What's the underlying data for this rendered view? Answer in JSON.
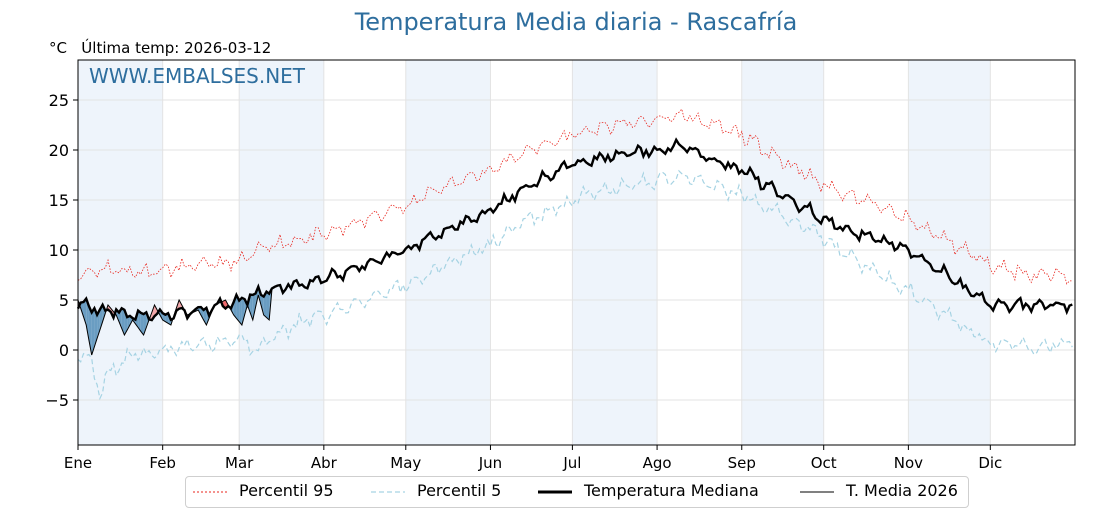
{
  "chart_data": {
    "type": "line",
    "title": "Temperatura Media diaria - Rascafría",
    "unit_label": "°C",
    "last_temp_label": "Última temp: 2026-03-12",
    "watermark": "WWW.EMBALSES.NET",
    "ylim": [
      -9.5,
      29
    ],
    "yticks": [
      -5,
      0,
      5,
      10,
      15,
      20,
      25
    ],
    "ytick_labels": [
      "−5",
      "0",
      "5",
      "10",
      "15",
      "20",
      "25"
    ],
    "months": [
      "Ene",
      "Feb",
      "Mar",
      "Abr",
      "May",
      "Jun",
      "Jul",
      "Ago",
      "Sep",
      "Oct",
      "Nov",
      "Dic"
    ],
    "month_start_days": [
      0,
      31,
      59,
      90,
      120,
      151,
      181,
      212,
      243,
      273,
      304,
      334
    ],
    "days_in_year": 365,
    "legend": [
      "Percentil 95",
      "Percentil 5",
      "Temperatura Mediana",
      "T. Media 2026"
    ],
    "colors": {
      "title": "#2e6e9e",
      "p95": "#e8241c",
      "p5": "#a6d3e3",
      "median": "#000000",
      "current": "#000000",
      "band": "#eef4fb",
      "above_fill": "#f3a7a9",
      "above_strong": "#ee6a6d",
      "below_fill": "#6a9dc2"
    },
    "series": [
      {
        "name": "Percentil 95",
        "style": "dotted",
        "anchors": [
          [
            0,
            7.5
          ],
          [
            10,
            8.2
          ],
          [
            20,
            7.8
          ],
          [
            31,
            8.0
          ],
          [
            45,
            8.5
          ],
          [
            59,
            8.8
          ],
          [
            70,
            10.5
          ],
          [
            90,
            11.5
          ],
          [
            105,
            13.0
          ],
          [
            120,
            14.5
          ],
          [
            135,
            16.5
          ],
          [
            151,
            18.0
          ],
          [
            165,
            20.0
          ],
          [
            181,
            21.5
          ],
          [
            196,
            22.5
          ],
          [
            212,
            23.0
          ],
          [
            222,
            23.5
          ],
          [
            232,
            22.5
          ],
          [
            243,
            21.5
          ],
          [
            258,
            19.0
          ],
          [
            273,
            16.5
          ],
          [
            288,
            15.0
          ],
          [
            304,
            13.0
          ],
          [
            318,
            11.0
          ],
          [
            334,
            8.5
          ],
          [
            350,
            7.5
          ],
          [
            364,
            7.5
          ]
        ]
      },
      {
        "name": "Percentil 5",
        "style": "dashed",
        "anchors": [
          [
            0,
            0.0
          ],
          [
            5,
            -1.0
          ],
          [
            8,
            -4.5
          ],
          [
            12,
            -2.0
          ],
          [
            20,
            -0.5
          ],
          [
            31,
            0.0
          ],
          [
            45,
            0.5
          ],
          [
            59,
            1.0
          ],
          [
            65,
            0.0
          ],
          [
            75,
            2.0
          ],
          [
            90,
            3.5
          ],
          [
            105,
            5.0
          ],
          [
            120,
            6.5
          ],
          [
            135,
            8.5
          ],
          [
            151,
            10.5
          ],
          [
            165,
            13.0
          ],
          [
            181,
            15.0
          ],
          [
            196,
            16.0
          ],
          [
            212,
            17.0
          ],
          [
            222,
            17.5
          ],
          [
            232,
            16.5
          ],
          [
            243,
            15.5
          ],
          [
            258,
            13.5
          ],
          [
            273,
            11.0
          ],
          [
            288,
            8.5
          ],
          [
            304,
            6.0
          ],
          [
            318,
            3.5
          ],
          [
            334,
            0.5
          ],
          [
            345,
            0.5
          ],
          [
            350,
            0.0
          ],
          [
            364,
            1.0
          ]
        ]
      },
      {
        "name": "Temperatura Mediana",
        "style": "solid",
        "anchors": [
          [
            0,
            4.5
          ],
          [
            10,
            4.0
          ],
          [
            20,
            3.5
          ],
          [
            31,
            3.5
          ],
          [
            45,
            4.0
          ],
          [
            59,
            5.0
          ],
          [
            70,
            6.0
          ],
          [
            90,
            7.0
          ],
          [
            105,
            8.5
          ],
          [
            120,
            10.0
          ],
          [
            135,
            12.0
          ],
          [
            151,
            14.0
          ],
          [
            165,
            16.5
          ],
          [
            181,
            18.5
          ],
          [
            196,
            19.5
          ],
          [
            212,
            20.0
          ],
          [
            222,
            20.5
          ],
          [
            232,
            19.0
          ],
          [
            243,
            18.0
          ],
          [
            258,
            15.5
          ],
          [
            273,
            13.0
          ],
          [
            288,
            11.5
          ],
          [
            304,
            10.0
          ],
          [
            318,
            7.5
          ],
          [
            334,
            4.5
          ],
          [
            350,
            4.5
          ],
          [
            364,
            4.5
          ]
        ]
      },
      {
        "name": "T. Media 2026",
        "style": "solid",
        "anchors": [
          [
            0,
            5.0
          ],
          [
            3,
            2.5
          ],
          [
            5,
            -0.5
          ],
          [
            8,
            2.0
          ],
          [
            11,
            4.5
          ],
          [
            14,
            3.5
          ],
          [
            17,
            1.5
          ],
          [
            20,
            3.0
          ],
          [
            24,
            1.5
          ],
          [
            28,
            4.5
          ],
          [
            31,
            3.0
          ],
          [
            34,
            2.5
          ],
          [
            37,
            5.0
          ],
          [
            40,
            3.5
          ],
          [
            44,
            4.0
          ],
          [
            47,
            2.5
          ],
          [
            50,
            4.5
          ],
          [
            54,
            5.0
          ],
          [
            57,
            3.5
          ],
          [
            60,
            2.5
          ],
          [
            62,
            4.5
          ],
          [
            64,
            3.0
          ],
          [
            66,
            5.5
          ],
          [
            68,
            3.5
          ],
          [
            70,
            3.0
          ],
          [
            71,
            6.0
          ]
        ]
      }
    ],
    "above_strong_ranges": [
      [
        51,
        58
      ]
    ]
  }
}
